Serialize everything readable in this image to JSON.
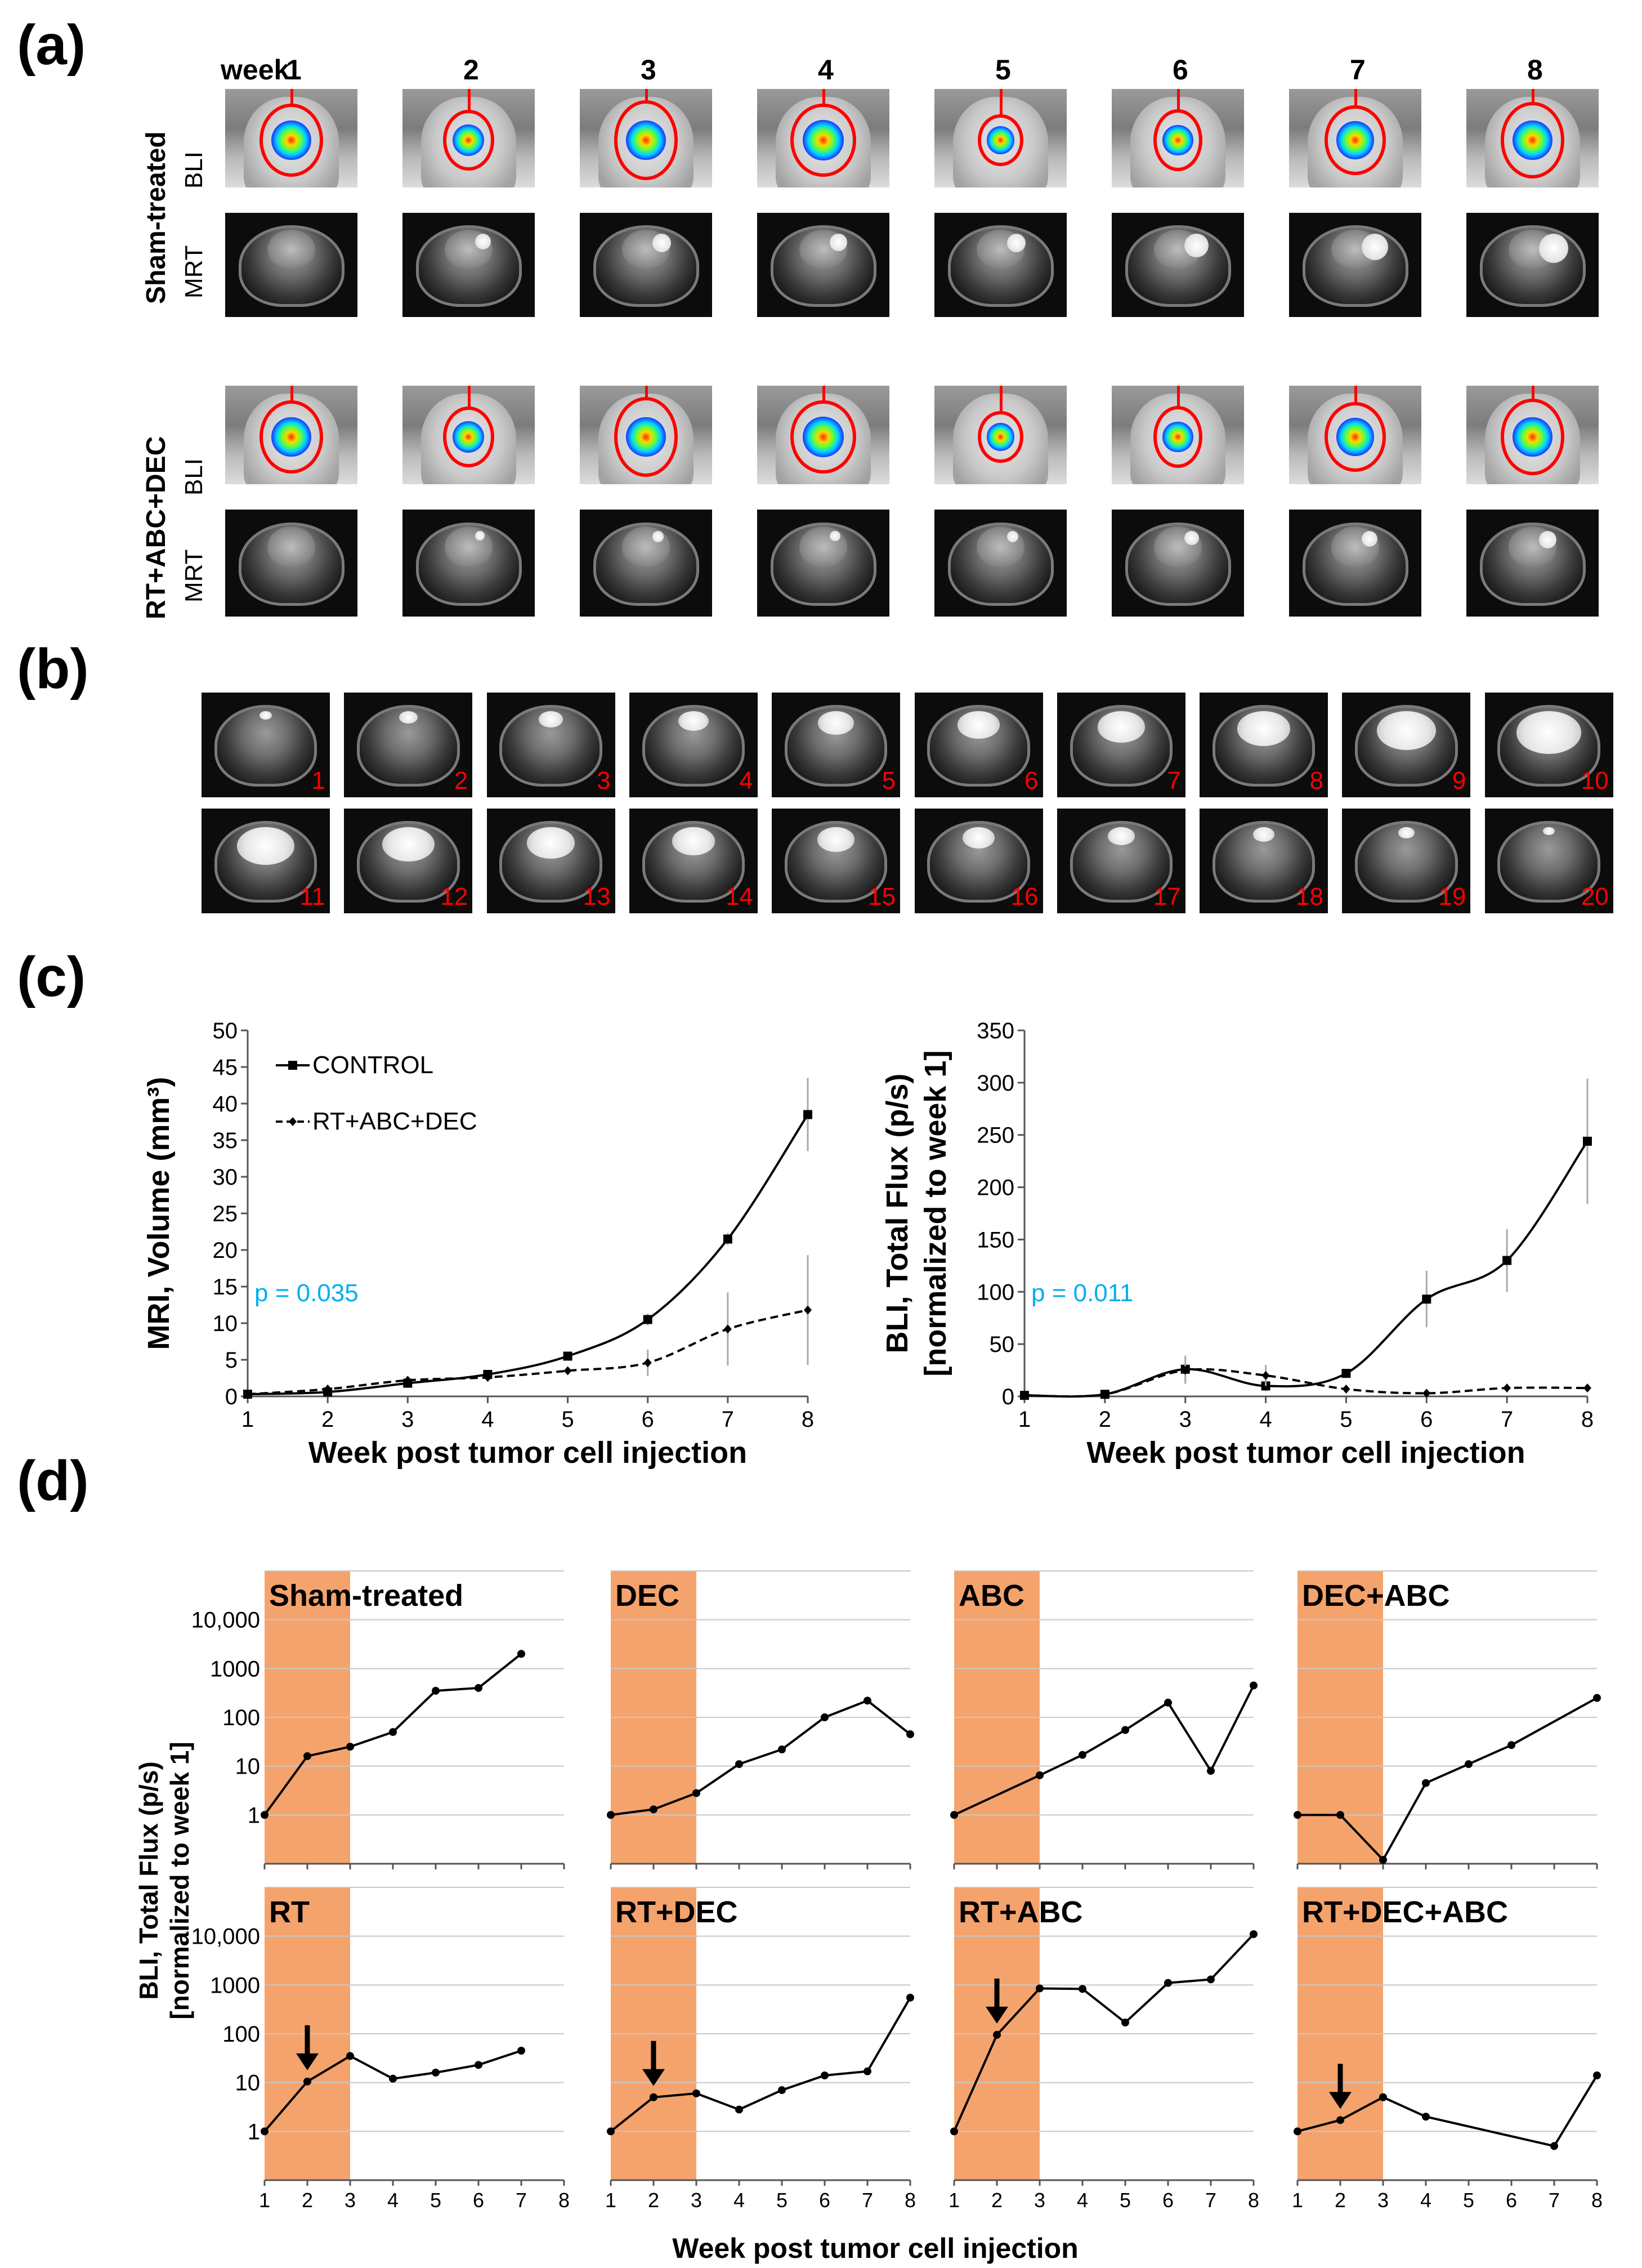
{
  "panels": {
    "a": "(a)",
    "b": "(b)",
    "c": "(c)",
    "d": "(d)"
  },
  "panel_a": {
    "week_word": "week",
    "weeks": [
      "1",
      "2",
      "3",
      "4",
      "5",
      "6",
      "7",
      "8"
    ],
    "groups": [
      {
        "name": "Sham-treated",
        "rows": [
          "BLI",
          "MRT"
        ]
      },
      {
        "name": "RT+ABC+DEC",
        "rows": [
          "BLI",
          "MRT"
        ]
      }
    ]
  },
  "panel_b": {
    "slices": [
      "1",
      "2",
      "3",
      "4",
      "5",
      "6",
      "7",
      "8",
      "9",
      "10",
      "11",
      "12",
      "13",
      "14",
      "15",
      "16",
      "17",
      "18",
      "19",
      "20"
    ]
  },
  "colors": {
    "red": "#ff0000",
    "pvalue": "#00aeef",
    "shade": "#f4a36d",
    "grid": "#c8c8c8"
  },
  "chart_data": [
    {
      "id": "c-left",
      "type": "line",
      "ylabel": "MRI, Volume (mm³)",
      "xlabel": "Week post tumor cell injection",
      "x": [
        1,
        2,
        3,
        4,
        5,
        6,
        7,
        8
      ],
      "ylim": [
        0,
        50
      ],
      "yticks": [
        "0",
        "5",
        "10",
        "15",
        "20",
        "25",
        "30",
        "35",
        "40",
        "45",
        "50"
      ],
      "xticks": [
        "1",
        "2",
        "3",
        "4",
        "5",
        "6",
        "7",
        "8"
      ],
      "annotation": "p = 0.035",
      "series": [
        {
          "name": "CONTROL",
          "style": "solid",
          "marker": "square",
          "values": [
            0.3,
            0.6,
            1.8,
            3.0,
            5.5,
            10.5,
            21.5,
            38.5
          ],
          "errors": [
            0,
            0,
            0,
            0,
            0,
            0.8,
            0.8,
            5.0
          ]
        },
        {
          "name": "RT+ABC+DEC",
          "style": "dashed",
          "marker": "diamond",
          "values": [
            0.3,
            1.0,
            2.2,
            2.6,
            3.5,
            4.6,
            9.2,
            11.8
          ],
          "errors": [
            0,
            0,
            0,
            0,
            0,
            1.8,
            5.0,
            7.5
          ]
        }
      ]
    },
    {
      "id": "c-right",
      "type": "line",
      "ylabel_line1": "BLI, Total Flux (p/s)",
      "ylabel_line2": "[normalized to week 1]",
      "xlabel": "Week post tumor cell injection",
      "x": [
        1,
        2,
        3,
        4,
        5,
        6,
        7,
        8
      ],
      "ylim": [
        0,
        350
      ],
      "yticks": [
        "0",
        "50",
        "100",
        "150",
        "200",
        "250",
        "300",
        "350"
      ],
      "xticks": [
        "1",
        "2",
        "3",
        "4",
        "5",
        "6",
        "7",
        "8"
      ],
      "annotation": "p = 0.011",
      "series": [
        {
          "name": "CONTROL",
          "style": "solid",
          "marker": "square",
          "values": [
            1,
            2,
            26,
            10,
            22,
            93,
            130,
            244
          ],
          "errors": [
            0,
            0,
            13,
            5,
            0,
            27,
            30,
            60
          ]
        },
        {
          "name": "RT+ABC+DEC",
          "style": "dashed",
          "marker": "diamond",
          "values": [
            1,
            2,
            25,
            20,
            7,
            3,
            8,
            8
          ],
          "errors": [
            0,
            0,
            13,
            10,
            0,
            0,
            0,
            0
          ]
        }
      ]
    },
    {
      "id": "d-panels",
      "type": "line",
      "ylabel_line1": "BLI, Total Flux (p/s)",
      "ylabel_line2": "[normalized to week 1]",
      "xlabel": "Week post tumor cell injection",
      "yscale": "log",
      "ylim": [
        0.1,
        100000
      ],
      "yticks": [
        "1",
        "10",
        "100",
        "1000",
        "10,000"
      ],
      "xticks": [
        "1",
        "2",
        "3",
        "4",
        "5",
        "6",
        "7",
        "8"
      ],
      "shaded_weeks": [
        1,
        3
      ],
      "subplots": [
        {
          "title": "Sham-treated",
          "x": [
            1,
            2,
            3,
            4,
            5,
            6,
            7
          ],
          "values": [
            1,
            16,
            25,
            50,
            350,
            400,
            2000
          ],
          "arrow": null
        },
        {
          "title": "DEC",
          "x": [
            1,
            2,
            3,
            4,
            5,
            6,
            7,
            8
          ],
          "values": [
            1,
            1.3,
            2.8,
            11,
            22,
            100,
            220,
            45
          ],
          "arrow": null
        },
        {
          "title": "ABC",
          "x": [
            1,
            3,
            4,
            5,
            6,
            7,
            8
          ],
          "values": [
            1,
            6.5,
            17,
            55,
            200,
            8,
            450
          ],
          "arrow": null
        },
        {
          "title": "DEC+ABC",
          "x": [
            1,
            2,
            3,
            4,
            5,
            6,
            8
          ],
          "values": [
            1,
            1,
            0.12,
            4.5,
            11,
            27,
            250
          ],
          "arrow": null
        },
        {
          "title": "RT",
          "x": [
            1,
            2,
            3,
            4,
            5,
            6,
            7
          ],
          "values": [
            1,
            10.5,
            35,
            12,
            16,
            23,
            45
          ],
          "arrow": 2
        },
        {
          "title": "RT+DEC",
          "x": [
            1,
            2,
            3,
            4,
            5,
            6,
            7,
            8
          ],
          "values": [
            1,
            5,
            6,
            2.8,
            7,
            14,
            17,
            550
          ],
          "arrow": 2
        },
        {
          "title": "RT+ABC",
          "x": [
            1,
            2,
            3,
            4,
            5,
            6,
            7,
            8
          ],
          "values": [
            1,
            95,
            850,
            830,
            170,
            1100,
            1300,
            11000
          ],
          "arrow": 2
        },
        {
          "title": "RT+DEC+ABC",
          "x": [
            1,
            2,
            3,
            4,
            7,
            8
          ],
          "values": [
            1,
            1.7,
            5,
            2,
            0.5,
            14
          ],
          "arrow": 2
        }
      ]
    }
  ]
}
